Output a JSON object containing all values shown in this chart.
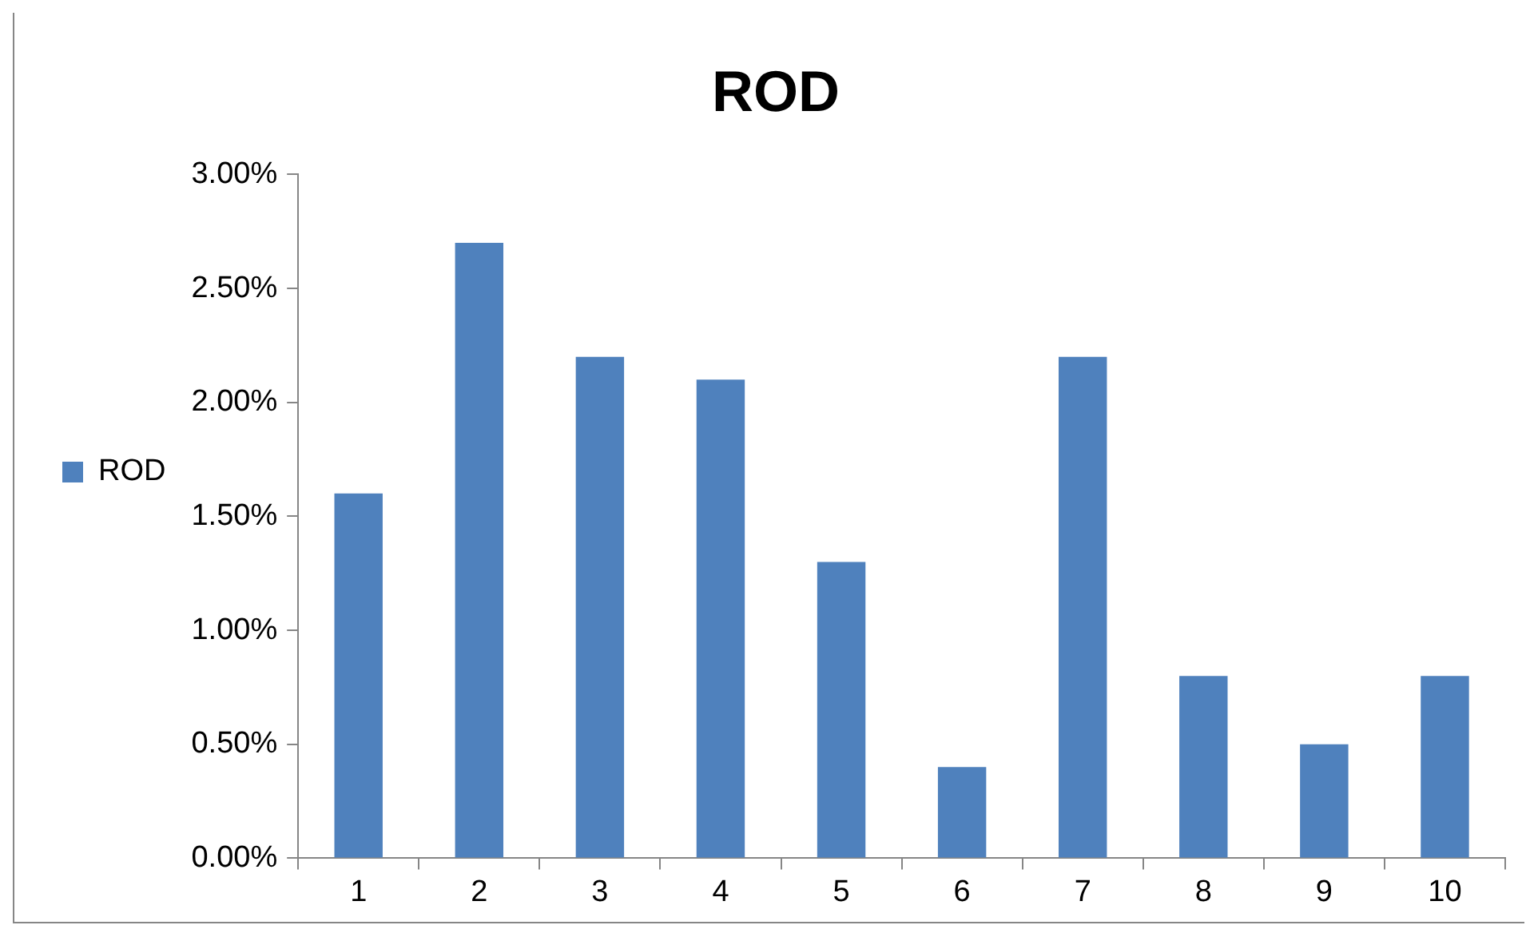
{
  "chart_data": {
    "type": "bar",
    "title": "ROD",
    "categories": [
      "1",
      "2",
      "3",
      "4",
      "5",
      "6",
      "7",
      "8",
      "9",
      "10"
    ],
    "series": [
      {
        "name": "ROD",
        "color": "#4f81bd",
        "values": [
          1.6,
          2.7,
          2.2,
          2.1,
          1.3,
          0.4,
          2.2,
          0.8,
          0.5,
          0.8
        ]
      }
    ],
    "ylim": [
      0,
      3
    ],
    "yticks": [
      {
        "value": 0,
        "label": "0.00%"
      },
      {
        "value": 0.5,
        "label": "0.50%"
      },
      {
        "value": 1,
        "label": "1.00%"
      },
      {
        "value": 1.5,
        "label": "1.50%"
      },
      {
        "value": 2,
        "label": "2.00%"
      },
      {
        "value": 2.5,
        "label": "2.50%"
      },
      {
        "value": 3,
        "label": "3.00%"
      }
    ],
    "grid": false,
    "legend": "left"
  }
}
